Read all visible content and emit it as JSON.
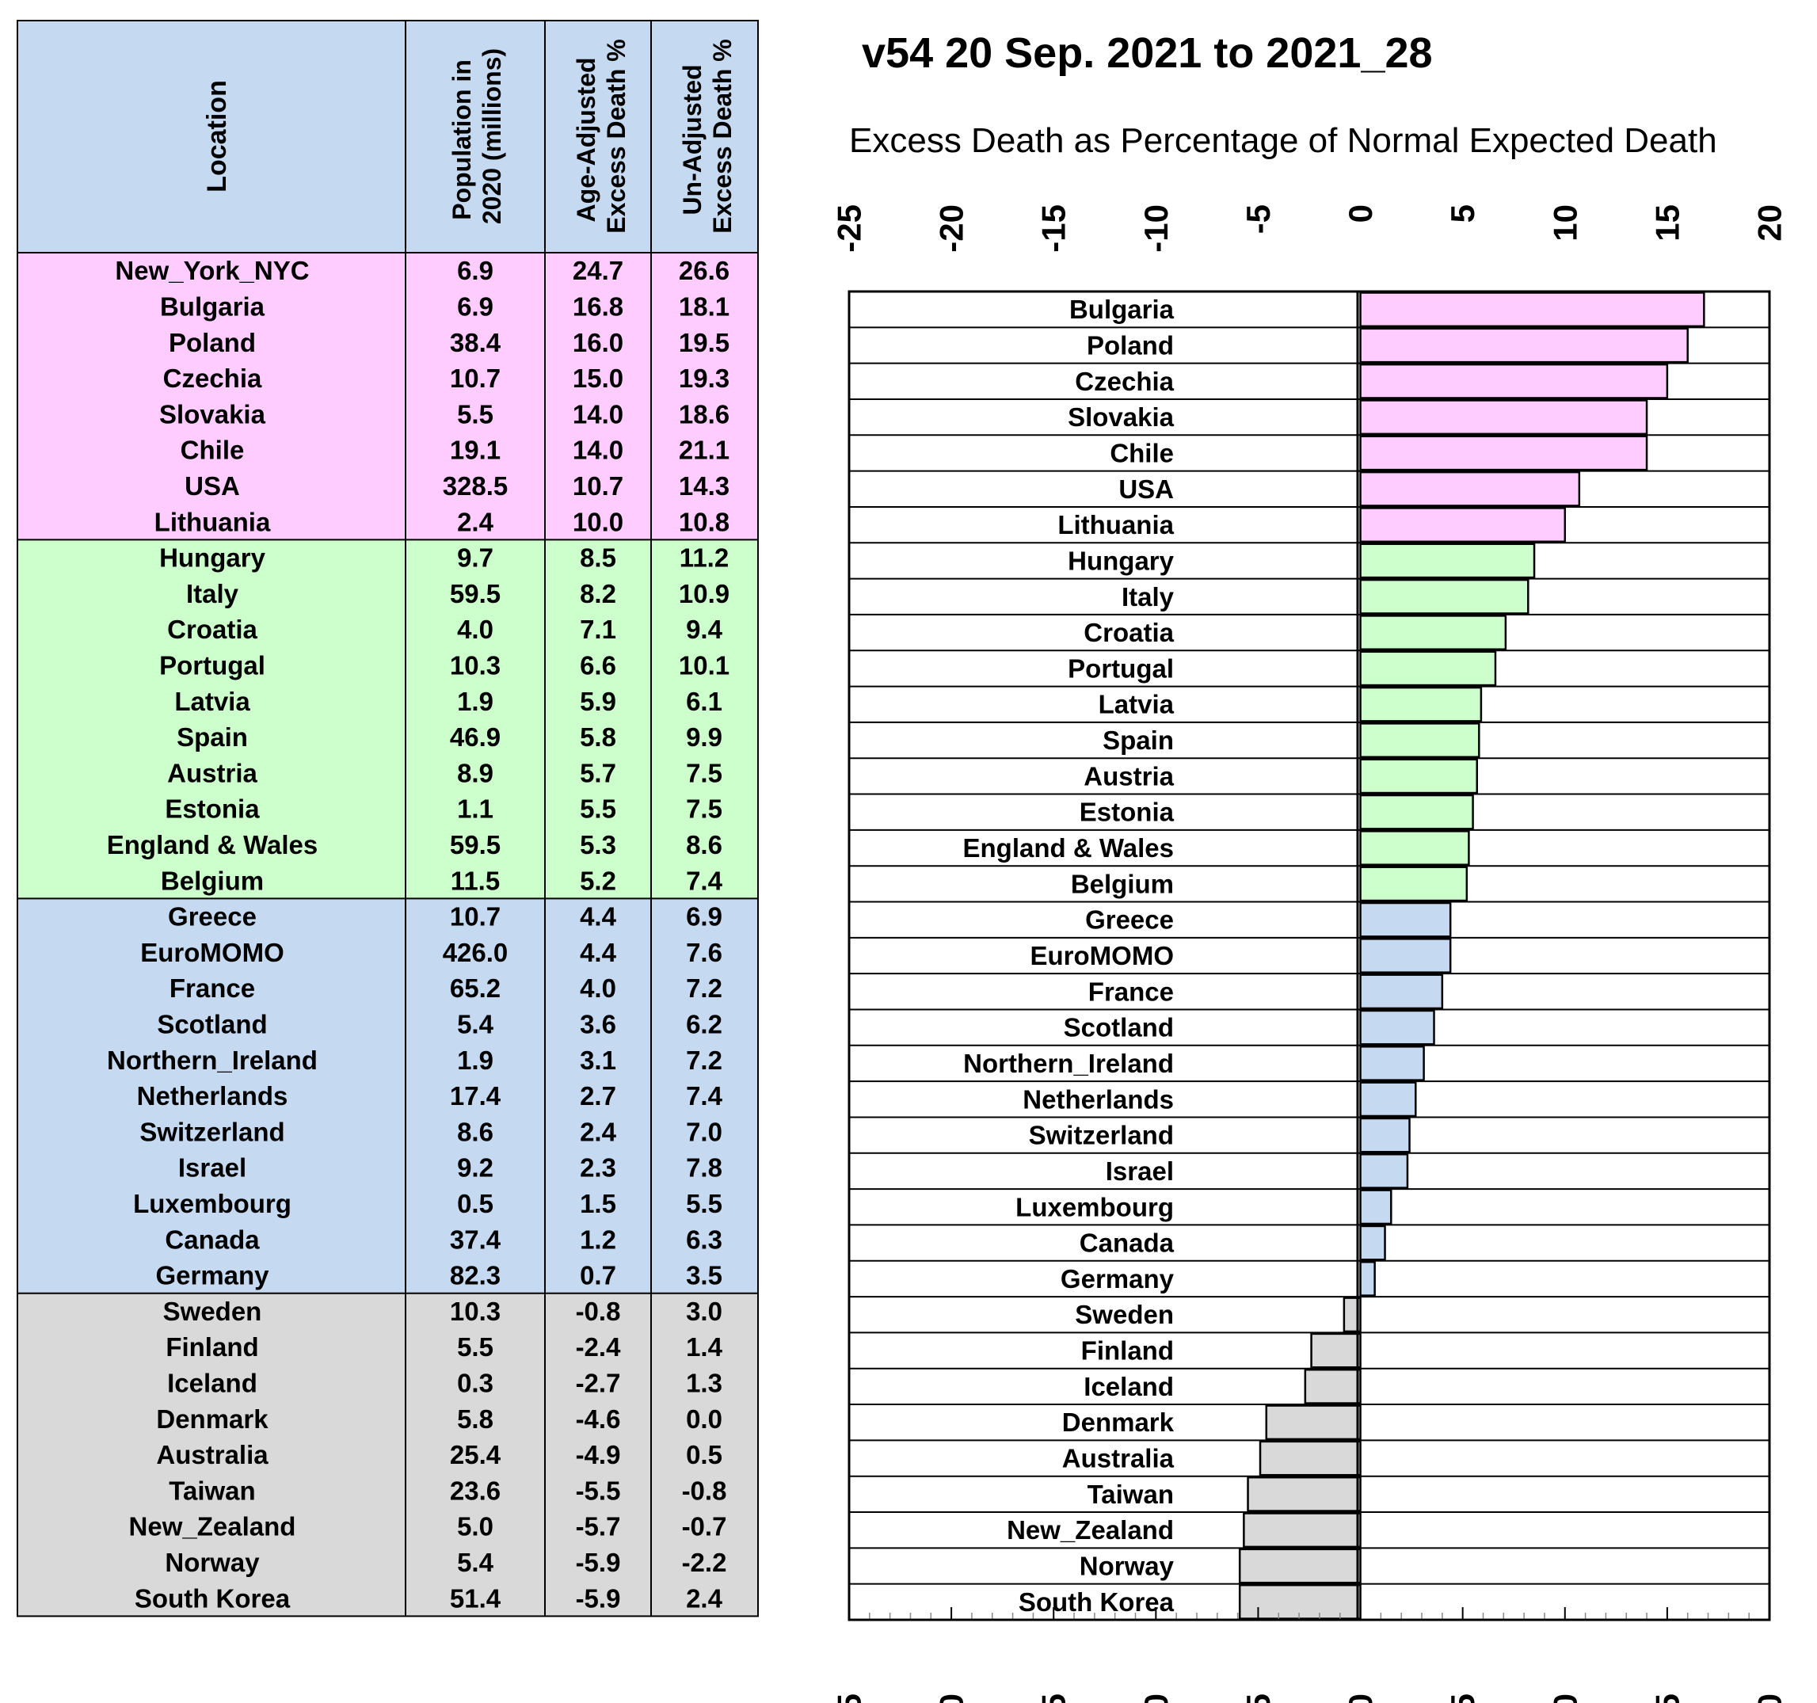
{
  "colors": {
    "pink": "#FFCCFF",
    "green": "#CCFFCC",
    "blue": "#C5D9F1",
    "gray": "#D9D9D9",
    "header": "#C5D9F1",
    "border": "#000000"
  },
  "table": {
    "headers": {
      "location": "Location",
      "population": [
        "Population in",
        "2020 (millions)"
      ],
      "age_adjusted": [
        "Age-Adjusted",
        "Excess Death %"
      ],
      "unadjusted": [
        "Un-Adjusted",
        "Excess Death %"
      ]
    },
    "groups": [
      {
        "color": "pink",
        "rows": [
          [
            "New_York_NYC",
            "6.9",
            "24.7",
            "26.6"
          ],
          [
            "Bulgaria",
            "6.9",
            "16.8",
            "18.1"
          ],
          [
            "Poland",
            "38.4",
            "16.0",
            "19.5"
          ],
          [
            "Czechia",
            "10.7",
            "15.0",
            "19.3"
          ],
          [
            "Slovakia",
            "5.5",
            "14.0",
            "18.6"
          ],
          [
            "Chile",
            "19.1",
            "14.0",
            "21.1"
          ],
          [
            "USA",
            "328.5",
            "10.7",
            "14.3"
          ],
          [
            "Lithuania",
            "2.4",
            "10.0",
            "10.8"
          ]
        ]
      },
      {
        "color": "green",
        "rows": [
          [
            "Hungary",
            "9.7",
            "8.5",
            "11.2"
          ],
          [
            "Italy",
            "59.5",
            "8.2",
            "10.9"
          ],
          [
            "Croatia",
            "4.0",
            "7.1",
            "9.4"
          ],
          [
            "Portugal",
            "10.3",
            "6.6",
            "10.1"
          ],
          [
            "Latvia",
            "1.9",
            "5.9",
            "6.1"
          ],
          [
            "Spain",
            "46.9",
            "5.8",
            "9.9"
          ],
          [
            "Austria",
            "8.9",
            "5.7",
            "7.5"
          ],
          [
            "Estonia",
            "1.1",
            "5.5",
            "7.5"
          ],
          [
            "England & Wales",
            "59.5",
            "5.3",
            "8.6"
          ],
          [
            "Belgium",
            "11.5",
            "5.2",
            "7.4"
          ]
        ]
      },
      {
        "color": "blue",
        "rows": [
          [
            "Greece",
            "10.7",
            "4.4",
            "6.9"
          ],
          [
            "EuroMOMO",
            "426.0",
            "4.4",
            "7.6"
          ],
          [
            "France",
            "65.2",
            "4.0",
            "7.2"
          ],
          [
            "Scotland",
            "5.4",
            "3.6",
            "6.2"
          ],
          [
            "Northern_Ireland",
            "1.9",
            "3.1",
            "7.2"
          ],
          [
            "Netherlands",
            "17.4",
            "2.7",
            "7.4"
          ],
          [
            "Switzerland",
            "8.6",
            "2.4",
            "7.0"
          ],
          [
            "Israel",
            "9.2",
            "2.3",
            "7.8"
          ],
          [
            "Luxembourg",
            "0.5",
            "1.5",
            "5.5"
          ],
          [
            "Canada",
            "37.4",
            "1.2",
            "6.3"
          ],
          [
            "Germany",
            "82.3",
            "0.7",
            "3.5"
          ]
        ]
      },
      {
        "color": "gray",
        "rows": [
          [
            "Sweden",
            "10.3",
            "-0.8",
            "3.0"
          ],
          [
            "Finland",
            "5.5",
            "-2.4",
            "1.4"
          ],
          [
            "Iceland",
            "0.3",
            "-2.7",
            "1.3"
          ],
          [
            "Denmark",
            "5.8",
            "-4.6",
            "0.0"
          ],
          [
            "Australia",
            "25.4",
            "-4.9",
            "0.5"
          ],
          [
            "Taiwan",
            "23.6",
            "-5.5",
            "-0.8"
          ],
          [
            "New_Zealand",
            "5.0",
            "-5.7",
            "-0.7"
          ],
          [
            "Norway",
            "5.4",
            "-5.9",
            "-2.2"
          ],
          [
            "South Korea",
            "51.4",
            "-5.9",
            "2.4"
          ]
        ]
      }
    ]
  },
  "chart_data": {
    "type": "bar",
    "orientation": "horizontal",
    "title": "v54 20 Sep. 2021 to 2021_28",
    "subtitle": "Excess Death as Percentage of Normal Expected Death",
    "xlim": [
      -25,
      20
    ],
    "xticks": [
      "-25",
      "-20",
      "-15",
      "-10",
      "-5",
      "0",
      "5",
      "10",
      "15",
      "20"
    ],
    "categories": [
      "Bulgaria",
      "Poland",
      "Czechia",
      "Slovakia",
      "Chile",
      "USA",
      "Lithuania",
      "Hungary",
      "Italy",
      "Croatia",
      "Portugal",
      "Latvia",
      "Spain",
      "Austria",
      "Estonia",
      "England & Wales",
      "Belgium",
      "Greece",
      "EuroMOMO",
      "France",
      "Scotland",
      "Northern_Ireland",
      "Netherlands",
      "Switzerland",
      "Israel",
      "Luxembourg",
      "Canada",
      "Germany",
      "Sweden",
      "Finland",
      "Iceland",
      "Denmark",
      "Australia",
      "Taiwan",
      "New_Zealand",
      "Norway",
      "South Korea"
    ],
    "values": [
      16.8,
      16.0,
      15.0,
      14.0,
      14.0,
      10.7,
      10.0,
      8.5,
      8.2,
      7.1,
      6.6,
      5.9,
      5.8,
      5.7,
      5.5,
      5.3,
      5.2,
      4.4,
      4.4,
      4.0,
      3.6,
      3.1,
      2.7,
      2.4,
      2.3,
      1.5,
      1.2,
      0.7,
      -0.8,
      -2.4,
      -2.7,
      -4.6,
      -4.9,
      -5.5,
      -5.7,
      -5.9,
      -5.9
    ],
    "bar_colors": [
      "pink",
      "pink",
      "pink",
      "pink",
      "pink",
      "pink",
      "pink",
      "green",
      "green",
      "green",
      "green",
      "green",
      "green",
      "green",
      "green",
      "green",
      "green",
      "blue",
      "blue",
      "blue",
      "blue",
      "blue",
      "blue",
      "blue",
      "blue",
      "blue",
      "blue",
      "blue",
      "gray",
      "gray",
      "gray",
      "gray",
      "gray",
      "gray",
      "gray",
      "gray",
      "gray"
    ]
  }
}
